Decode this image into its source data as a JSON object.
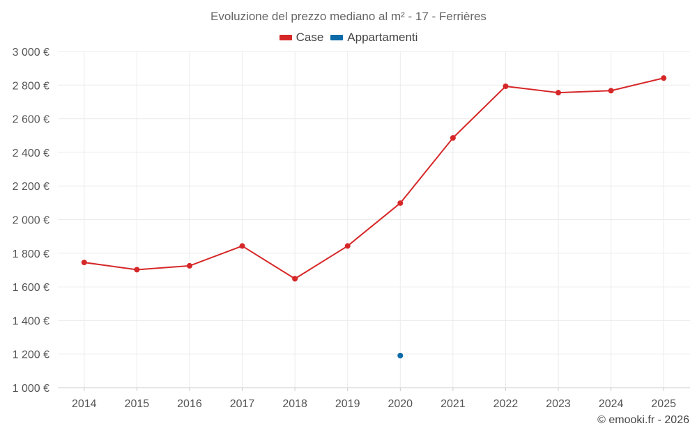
{
  "chart_data": {
    "type": "line",
    "title": "Evoluzione del prezzo mediano al m² - 17 - Ferrières",
    "xlabel": "",
    "ylabel": "",
    "categories": [
      "2014",
      "2015",
      "2016",
      "2017",
      "2018",
      "2019",
      "2020",
      "2021",
      "2022",
      "2023",
      "2024",
      "2025"
    ],
    "ylim": [
      1000,
      3000
    ],
    "yticks": [
      1000,
      1200,
      1400,
      1600,
      1800,
      2000,
      2200,
      2400,
      2600,
      2800,
      3000
    ],
    "ytick_labels": [
      "1 000 €",
      "1 200 €",
      "1 400 €",
      "1 600 €",
      "1 800 €",
      "2 000 €",
      "2 200 €",
      "2 400 €",
      "2 600 €",
      "2 800 €",
      "3 000 €"
    ],
    "grid": true,
    "legend_position": "top-center",
    "series": [
      {
        "name": "Case",
        "color": "#d62728",
        "values": [
          1745,
          1702,
          1725,
          1843,
          1648,
          1843,
          2098,
          2486,
          2793,
          2755,
          2767,
          2842
        ]
      },
      {
        "name": "Appartamenti",
        "color": "#0b6ba8",
        "values": [
          null,
          null,
          null,
          null,
          null,
          null,
          1191,
          null,
          null,
          null,
          null,
          null
        ]
      }
    ]
  },
  "credit": "© emooki.fr - 2026"
}
